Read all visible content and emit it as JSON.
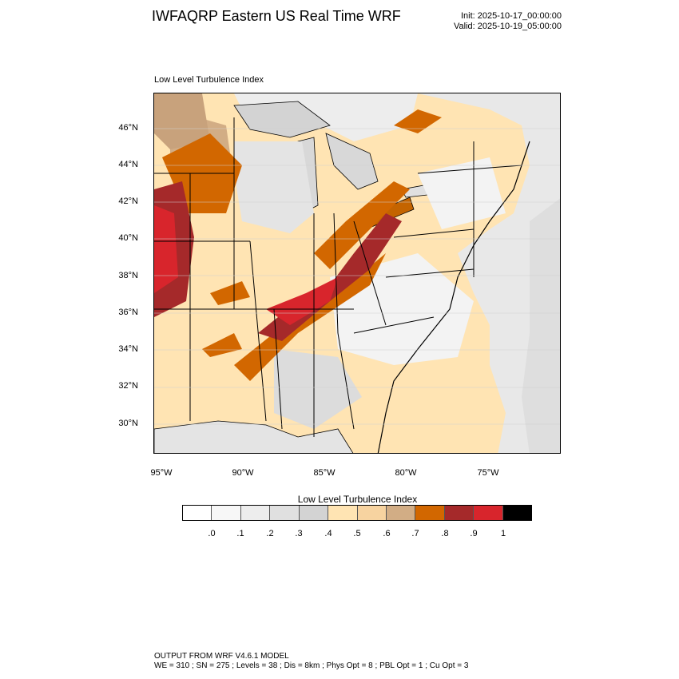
{
  "header": {
    "title": "IWFAQRP Eastern US Real Time WRF",
    "init": "Init: 2025-10-17_00:00:00",
    "valid": "Valid: 2025-10-19_05:00:00"
  },
  "map": {
    "label": "Low Level Turbulence Index",
    "lat_ticks": [
      "46°N",
      "44°N",
      "42°N",
      "40°N",
      "38°N",
      "36°N",
      "34°N",
      "32°N",
      "30°N"
    ],
    "lon_ticks": [
      "95°W",
      "90°W",
      "85°W",
      "80°W",
      "75°W"
    ]
  },
  "colorbar": {
    "title": "Low Level Turbulence Index",
    "labels": [
      ".0",
      ".1",
      ".2",
      ".3",
      ".4",
      ".5",
      ".6",
      ".7",
      ".8",
      ".9",
      "1"
    ],
    "colors": [
      "#ffffff",
      "#f7f7f7",
      "#ededed",
      "#e0e0e0",
      "#d3d3d3",
      "#ffe4b3",
      "#f7d3a0",
      "#d2ad85",
      "#d26700",
      "#a5292a",
      "#d8252c",
      "#000000"
    ]
  },
  "footer": {
    "line1": "OUTPUT FROM WRF V4.6.1 MODEL",
    "line2": "WE = 310 ; SN = 275 ; Levels = 38 ; Dis = 8km ; Phys Opt = 8 ; PBL Opt = 1 ; Cu Opt = 3"
  }
}
